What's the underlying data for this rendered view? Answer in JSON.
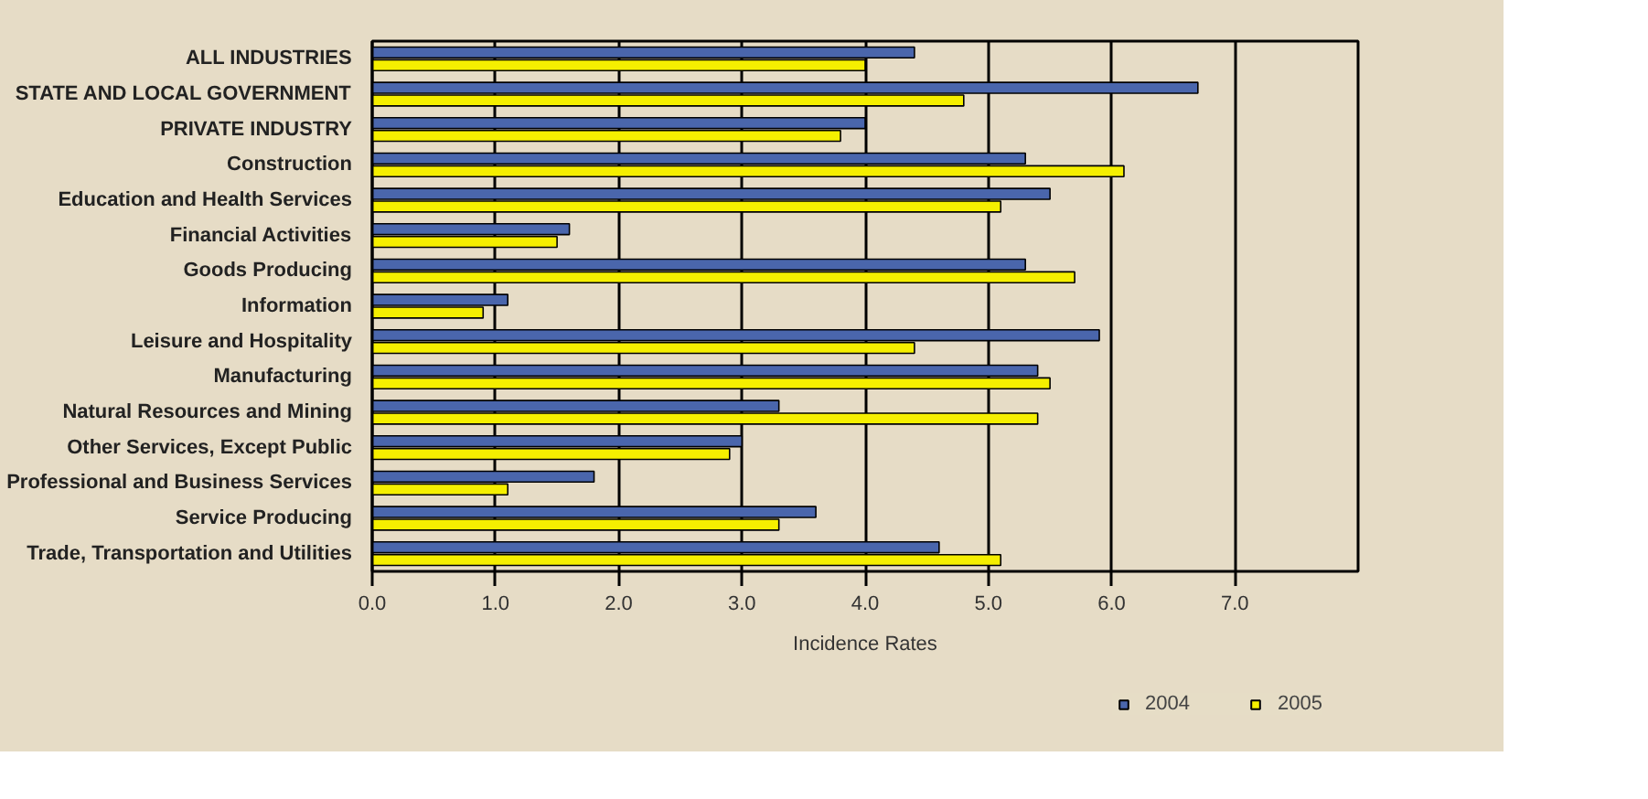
{
  "chart_data": {
    "type": "bar",
    "orientation": "horizontal",
    "xlabel": "Incidence Rates",
    "categories": [
      "ALL INDUSTRIES",
      "STATE AND LOCAL GOVERNMENT",
      "PRIVATE INDUSTRY",
      "Construction",
      "Education and Health Services",
      "Financial Activities",
      "Goods Producing",
      "Information",
      "Leisure and Hospitality",
      "Manufacturing",
      "Natural Resources and Mining",
      "Other Services, Except Public",
      "Professional and Business Services",
      "Service Producing",
      "Trade, Transportation and Utilities"
    ],
    "series": [
      {
        "name": "2004",
        "color": "#4a66ac",
        "values": [
          4.4,
          6.7,
          4.0,
          5.3,
          5.5,
          1.6,
          5.3,
          1.1,
          5.9,
          5.4,
          3.3,
          3.0,
          1.8,
          3.6,
          4.6
        ]
      },
      {
        "name": "2005",
        "color": "#f5ef00",
        "values": [
          4.0,
          4.8,
          3.8,
          6.1,
          5.1,
          1.5,
          5.7,
          0.9,
          4.4,
          5.5,
          5.4,
          2.9,
          1.1,
          3.3,
          5.1
        ]
      }
    ],
    "xlim": [
      0,
      8
    ],
    "xticks": [
      {
        "value": 0,
        "label": "0.0"
      },
      {
        "value": 1,
        "label": "1.0"
      },
      {
        "value": 2,
        "label": "2.0"
      },
      {
        "value": 3,
        "label": "3.0"
      },
      {
        "value": 4,
        "label": "4.0"
      },
      {
        "value": 5,
        "label": "5.0"
      },
      {
        "value": 6,
        "label": "6.0"
      },
      {
        "value": 7,
        "label": "7.0"
      }
    ],
    "grid": "x",
    "legend": "bottom"
  }
}
